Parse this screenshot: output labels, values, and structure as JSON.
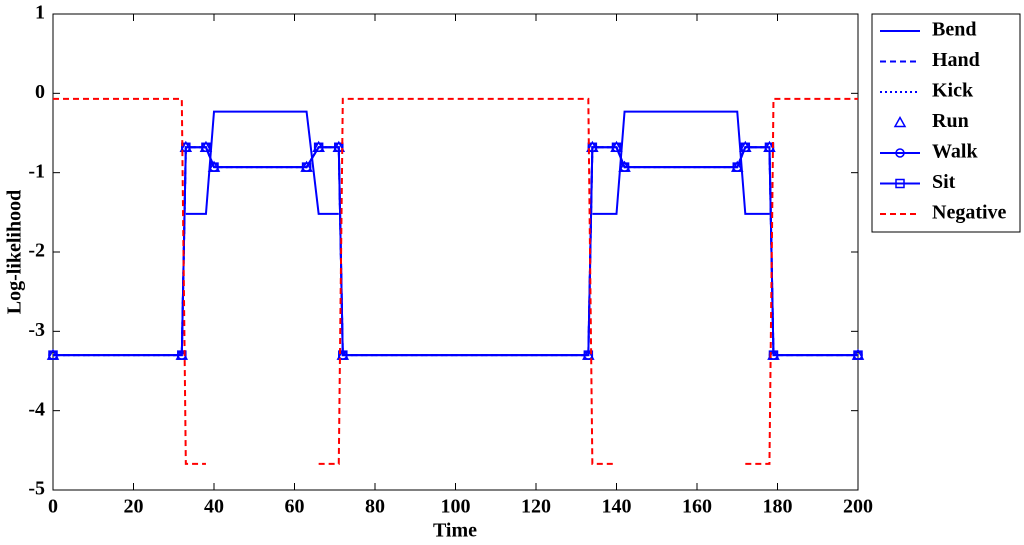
{
  "chart_data": {
    "type": "line",
    "x_label": "Time",
    "y_label": "Log-likelihood",
    "x": [
      0,
      32,
      33,
      38,
      40,
      63,
      66,
      71,
      72,
      133,
      134,
      140,
      142,
      170,
      172,
      178,
      179,
      200
    ],
    "series": [
      {
        "name": "Bend",
        "color": "#0000ff",
        "style": "solid",
        "marker": "none",
        "values": [
          null,
          null,
          -1.52,
          -1.52,
          -0.23,
          -0.23,
          -1.52,
          -1.52,
          null,
          null,
          -1.52,
          -1.52,
          -0.23,
          -0.23,
          -1.52,
          -1.52,
          null,
          null
        ]
      },
      {
        "name": "Hand",
        "color": "#0000ff",
        "style": "dashed",
        "marker": "none",
        "values": [
          -3.3,
          -3.3,
          -0.68,
          -0.68,
          -0.93,
          -0.93,
          -0.68,
          -0.68,
          -3.3,
          -3.3,
          -0.68,
          -0.68,
          -0.93,
          -0.93,
          -0.68,
          -0.68,
          -3.3,
          -3.3
        ]
      },
      {
        "name": "Kick",
        "color": "#0000ff",
        "style": "dotted",
        "marker": "none",
        "values": [
          -3.3,
          -3.3,
          -0.68,
          -0.68,
          -0.93,
          -0.93,
          -0.68,
          -0.68,
          -3.3,
          -3.3,
          -0.68,
          -0.68,
          -0.93,
          -0.93,
          -0.68,
          -0.68,
          -3.3,
          -3.3
        ]
      },
      {
        "name": "Run",
        "color": "#0000ff",
        "style": "none",
        "marker": "triangle",
        "values": [
          -3.3,
          -3.3,
          -0.68,
          -0.68,
          -0.93,
          -0.93,
          -0.68,
          -0.68,
          -3.3,
          -3.3,
          -0.68,
          -0.68,
          -0.93,
          -0.93,
          -0.68,
          -0.68,
          -3.3,
          -3.3
        ]
      },
      {
        "name": "Walk",
        "color": "#0000ff",
        "style": "solid",
        "marker": "circle",
        "values": [
          -3.3,
          -3.3,
          -0.68,
          -0.68,
          -0.93,
          -0.93,
          -0.68,
          -0.68,
          -3.3,
          -3.3,
          -0.68,
          -0.68,
          -0.93,
          -0.93,
          -0.68,
          -0.68,
          -3.3,
          -3.3
        ]
      },
      {
        "name": "Sit",
        "color": "#0000ff",
        "style": "solid",
        "marker": "square",
        "values": [
          -3.3,
          -3.3,
          -0.68,
          -0.68,
          -0.93,
          -0.93,
          -0.68,
          -0.68,
          -3.3,
          -3.3,
          -0.68,
          -0.68,
          -0.93,
          -0.93,
          -0.68,
          -0.68,
          -3.3,
          -3.3
        ]
      },
      {
        "name": "Negative",
        "color": "#ff0000",
        "style": "dashed",
        "marker": "none",
        "values": [
          -0.07,
          -0.07,
          -4.67,
          -4.67,
          null,
          null,
          -4.67,
          -4.67,
          -0.07,
          -0.07,
          -4.67,
          -4.67,
          null,
          null,
          -4.67,
          -4.67,
          -0.07,
          -0.07
        ]
      }
    ],
    "xlim": [
      0,
      200
    ],
    "xticks": [
      0,
      20,
      40,
      60,
      80,
      100,
      120,
      140,
      160,
      180,
      200
    ],
    "ylim": [
      -5,
      1
    ],
    "yticks": [
      -5,
      -4,
      -3,
      -2,
      -1,
      0,
      1
    ],
    "grid": false,
    "legend": "outside-right"
  }
}
